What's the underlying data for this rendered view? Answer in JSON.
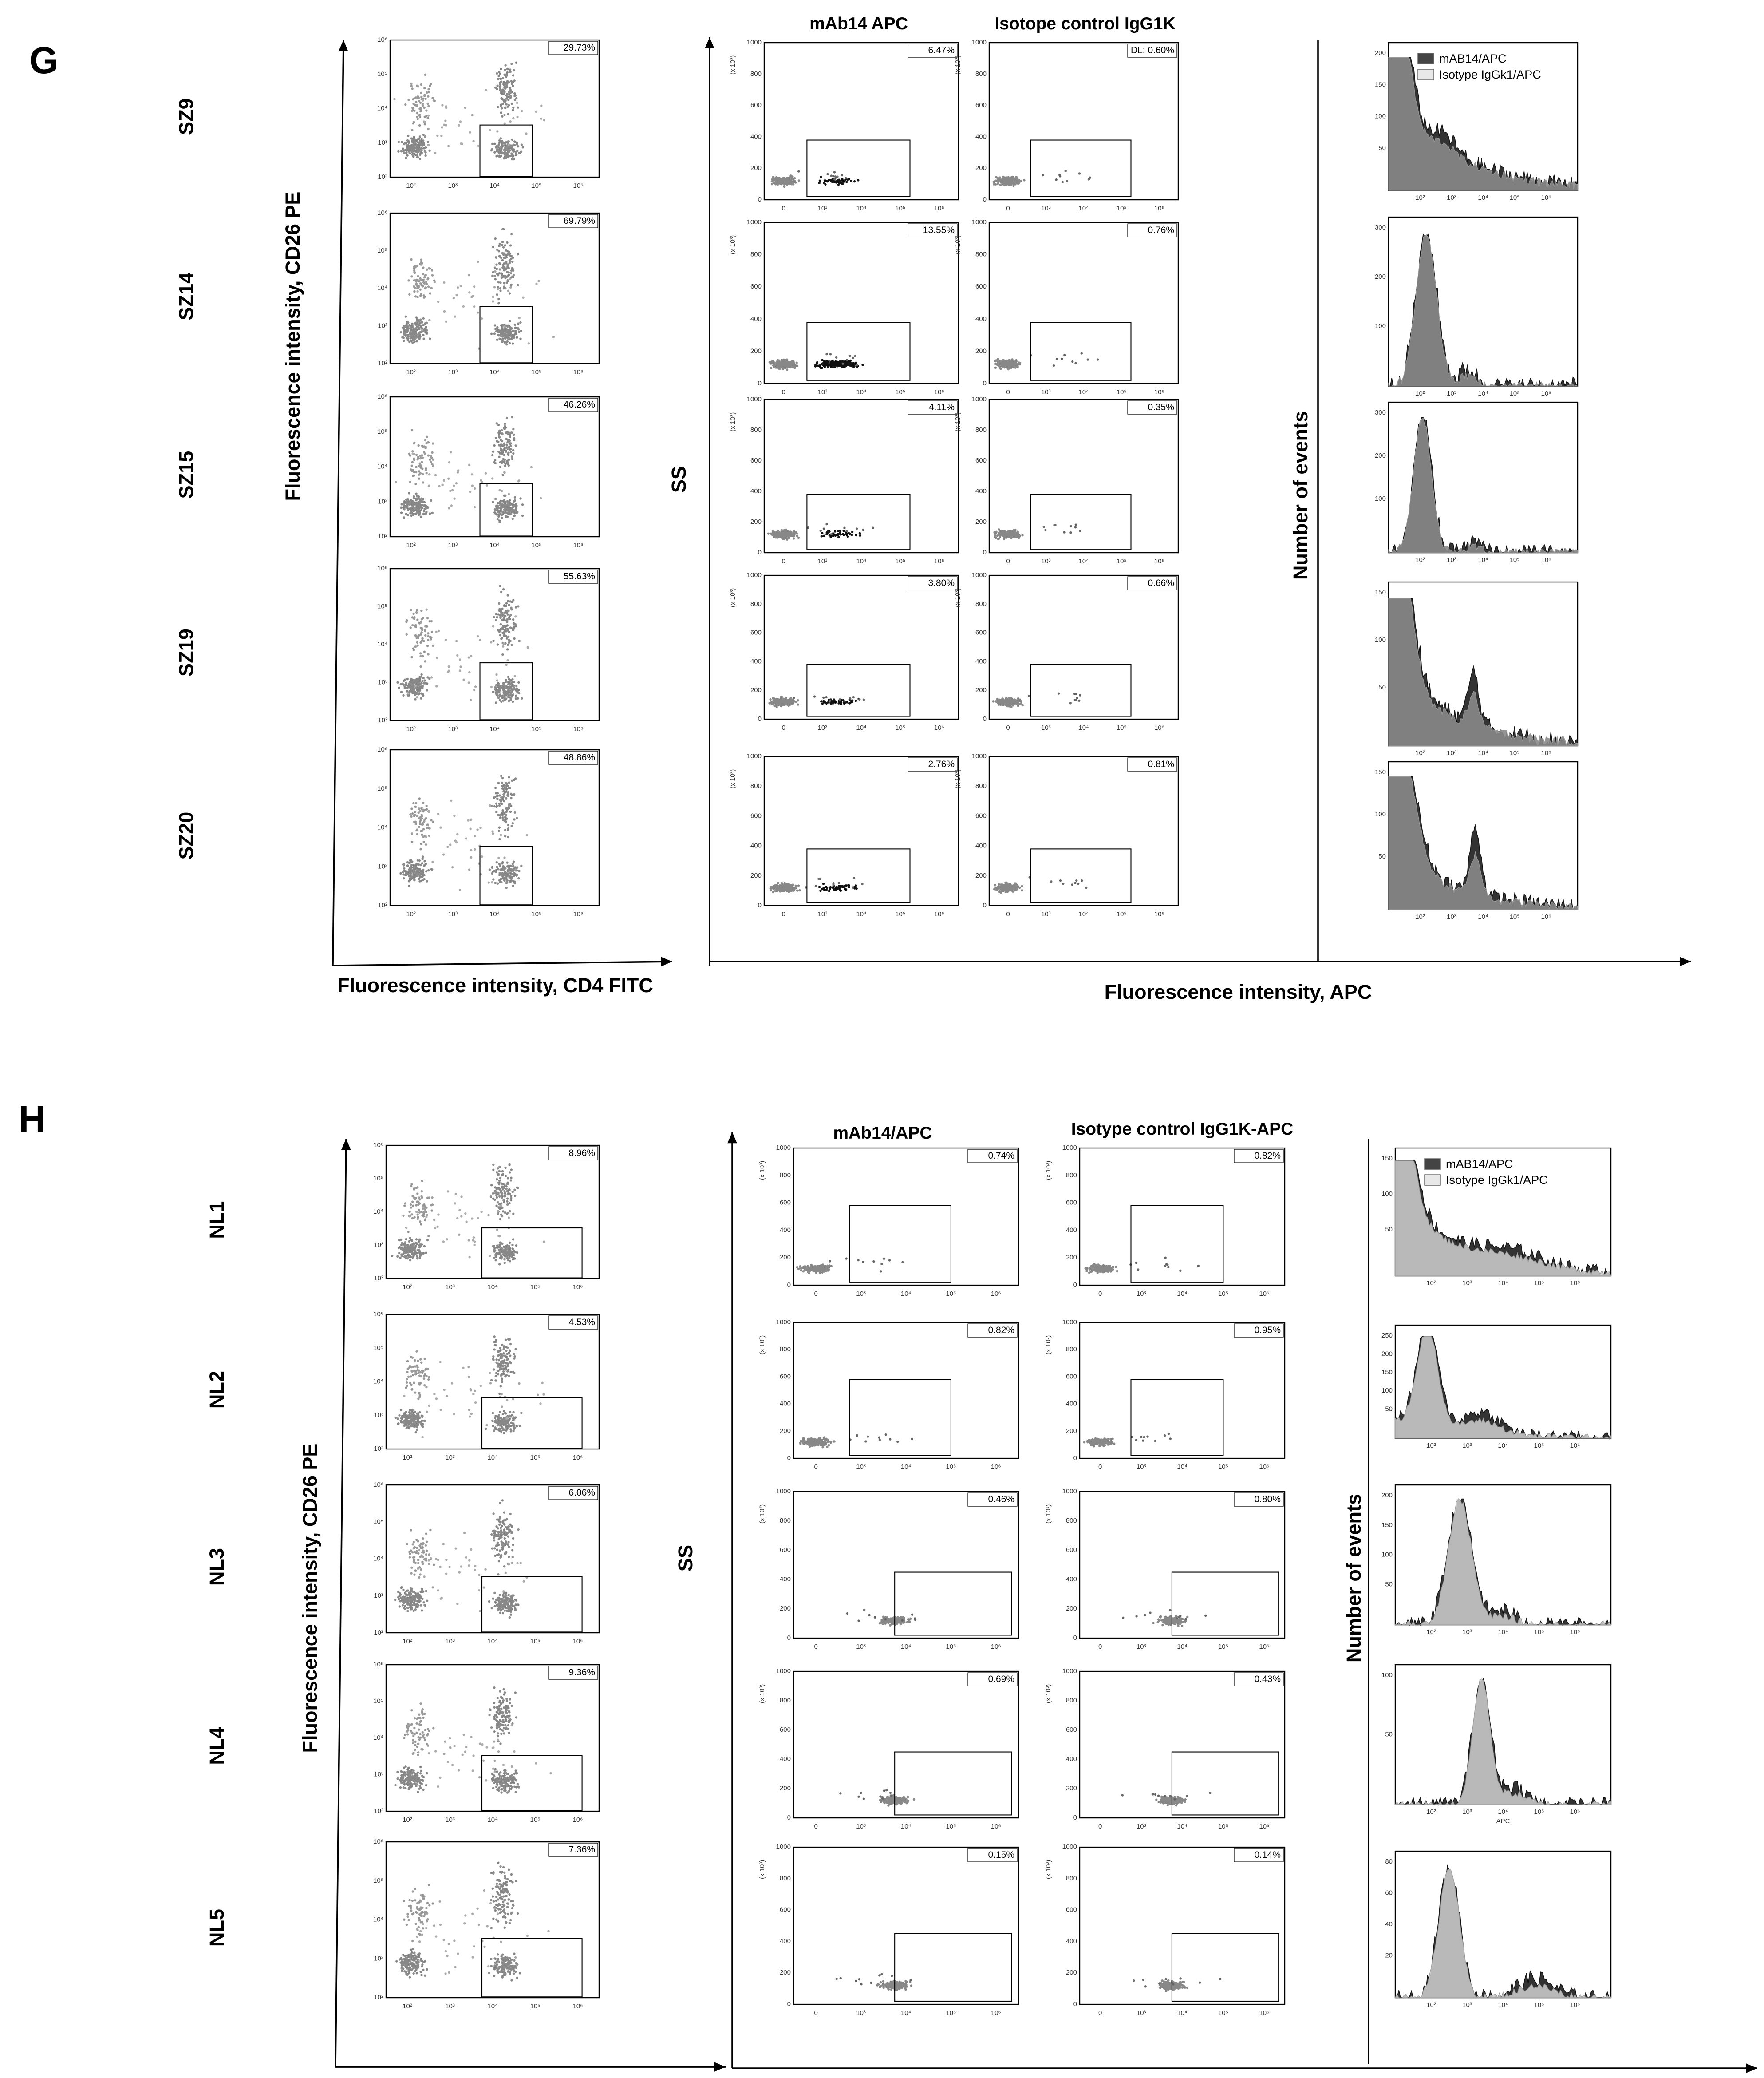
{
  "panels": [
    {
      "label": "G",
      "samples": [
        "SZ9",
        "SZ14",
        "SZ15",
        "SZ19",
        "SZ20"
      ],
      "cd4_percent": [
        "29.73%",
        "69.79%",
        "46.26%",
        "55.63%",
        "48.86%"
      ],
      "mab_percent": [
        "6.47%",
        "13.55%",
        "4.11%",
        "3.80%",
        "2.76%"
      ],
      "iso_percent": [
        "DL: 0.60%",
        "0.76%",
        "0.35%",
        "0.66%",
        "0.81%"
      ],
      "col_titles": [
        "mAb14 APC",
        "Isotope control IgG1K"
      ],
      "legend": [
        "mAB14/APC",
        "Isotype IgGk1/APC"
      ],
      "hist_yticks": [
        [
          "200",
          "150",
          "100",
          "50"
        ],
        [
          "300",
          "200",
          "100"
        ],
        [
          "300",
          "200",
          "100"
        ],
        [
          "150",
          "100",
          "50"
        ],
        [
          "150",
          "100",
          "50"
        ]
      ],
      "x_label_left": "Fluorescence intensity, CD4 FITC",
      "y_label_left": "Fluorescence intensity, CD26 PE",
      "y_label_mid": "SS",
      "y_label_right": "Number of events",
      "x_label_right": "Fluorescence intensity, APC"
    },
    {
      "label": "H",
      "samples": [
        "NL1",
        "NL2",
        "NL3",
        "NL4",
        "NL5"
      ],
      "cd4_percent": [
        "8.96%",
        "4.53%",
        "6.06%",
        "9.36%",
        "7.36%"
      ],
      "mab_percent": [
        "0.74%",
        "0.82%",
        "0.46%",
        "0.69%",
        "0.15%"
      ],
      "iso_percent": [
        "0.82%",
        "0.95%",
        "0.80%",
        "0.43%",
        "0.14%"
      ],
      "col_titles": [
        "mAb14/APC",
        "Isotype control IgG1K-APC"
      ],
      "legend": [
        "mAB14/APC",
        "Isotype IgGk1/APC"
      ],
      "hist_yticks": [
        [
          "150",
          "100",
          "50"
        ],
        [
          "250",
          "200",
          "150",
          "100",
          "50"
        ],
        [
          "200",
          "150",
          "100",
          "50"
        ],
        [
          "100",
          "50"
        ],
        [
          "80",
          "60",
          "40",
          "20"
        ]
      ],
      "hist_axis_note": "APC",
      "x_label_left": "Fluorescence intensity, CD4 FITC",
      "y_label_left": "Fluorescence intensity, CD26 PE",
      "y_label_mid": "SS",
      "y_label_right": "Number of events",
      "x_label_right": "Fluorescence intensity, APC"
    }
  ],
  "log_ticks": [
    "10²",
    "10³",
    "10⁴",
    "10⁵",
    "10⁶"
  ],
  "ss_x_ticks": [
    "0",
    "10³",
    "10⁴",
    "10⁵",
    "10⁶"
  ],
  "ss_y_ticks": [
    "0",
    "200",
    "400",
    "600",
    "800",
    "1000"
  ],
  "ss_unit": "(x 10³)"
}
